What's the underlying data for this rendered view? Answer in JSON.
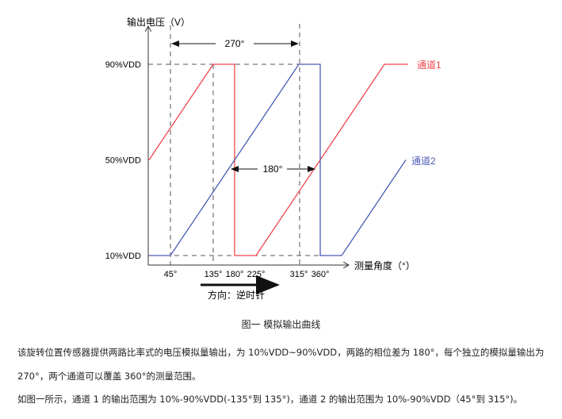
{
  "chart_data": {
    "type": "line",
    "ylabel": "输出电压（V）",
    "xlabel": "测量角度（°）",
    "y_ticks": [
      "10%VDD",
      "50%VDD",
      "90%VDD"
    ],
    "x_ticks": [
      "45°",
      "135°",
      "180°",
      "225°",
      "315°",
      "360°"
    ],
    "annotations": {
      "span_270": "270°",
      "span_180": "180°",
      "direction": "方向：逆时针"
    },
    "series": [
      {
        "name": "通道1",
        "color": "#f0454a",
        "points": [
          [
            0,
            50
          ],
          [
            135,
            90
          ],
          [
            180,
            90
          ],
          [
            180,
            10
          ],
          [
            225,
            10
          ],
          [
            495,
            90
          ],
          [
            545,
            90
          ]
        ]
      },
      {
        "name": "通道2",
        "color": "#4a5bb5",
        "points": [
          [
            0,
            10
          ],
          [
            45,
            10
          ],
          [
            315,
            90
          ],
          [
            360,
            90
          ],
          [
            360,
            10
          ],
          [
            405,
            10
          ],
          [
            540,
            50
          ]
        ]
      }
    ]
  },
  "caption": "图一 模拟输出曲线",
  "paragraphs": [
    "该旋转位置传感器提供两路比率式的电压模拟量输出，为 10%VDD~90%VDD，两路的相位差为 180°，每个独立的模拟量输出为",
    "270°，两个通道可以覆盖 360°的测量范围。",
    "如图一所示，通道 1 的输出范围为 10%-90%VDD(-135°到 135°)，通道 2 的输出范围为 10%-90%VDD（45°到 315°)。"
  ]
}
